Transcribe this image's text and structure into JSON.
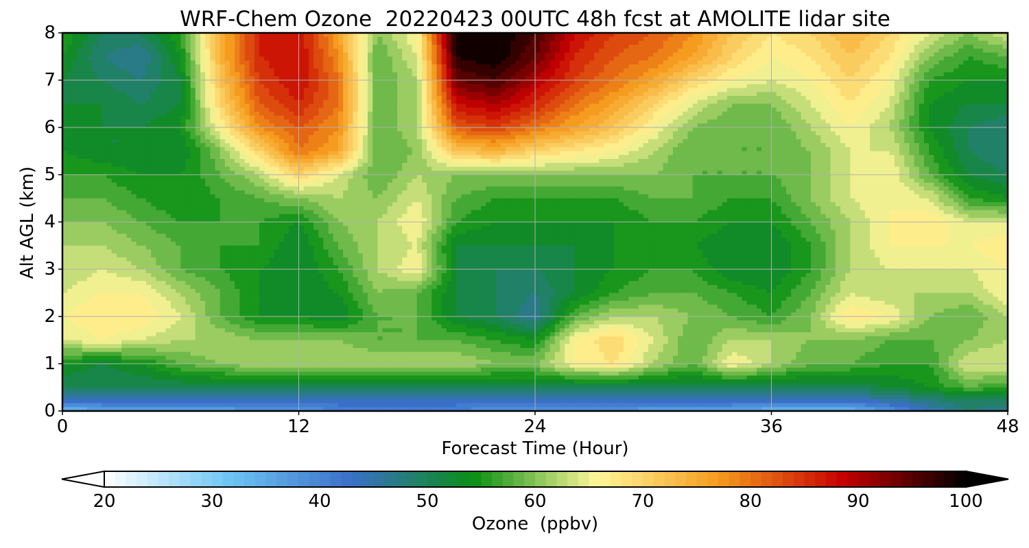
{
  "chart_data": {
    "type": "heatmap",
    "title": "WRF-Chem Ozone  20220423 00UTC 48h fcst at AMOLITE lidar site",
    "xlabel": "Forecast Time (Hour)",
    "ylabel": "Alt AGL (km)",
    "xlim": [
      0,
      48
    ],
    "ylim": [
      0,
      8
    ],
    "x_ticks": [
      "0",
      "12",
      "24",
      "36",
      "48"
    ],
    "y_ticks": [
      "0",
      "1",
      "2",
      "3",
      "4",
      "5",
      "6",
      "7",
      "8"
    ],
    "grid": true,
    "x": [
      0,
      2,
      4,
      6,
      8,
      10,
      12,
      14,
      16,
      18,
      20,
      22,
      24,
      26,
      28,
      30,
      32,
      34,
      36,
      38,
      40,
      42,
      44,
      46,
      48
    ],
    "y": [
      0,
      0.25,
      0.5,
      1,
      1.5,
      2,
      2.5,
      3,
      3.5,
      4,
      4.5,
      5,
      5.5,
      6,
      6.5,
      7,
      7.5,
      8
    ],
    "z": [
      [
        32,
        36,
        36,
        36,
        36,
        38,
        38,
        40,
        40,
        40,
        40,
        38,
        38,
        38,
        38,
        36,
        36,
        36,
        34,
        34,
        34,
        38,
        44,
        48,
        46
      ],
      [
        44,
        44,
        44,
        44,
        44,
        44,
        44,
        44,
        44,
        44,
        44,
        44,
        44,
        44,
        44,
        44,
        44,
        44,
        44,
        44,
        44,
        46,
        48,
        50,
        50
      ],
      [
        50,
        50,
        50,
        50,
        50,
        50,
        50,
        50,
        50,
        50,
        50,
        50,
        50,
        50,
        50,
        50,
        50,
        50,
        50,
        50,
        50,
        52,
        54,
        58,
        56
      ],
      [
        54,
        52,
        54,
        58,
        60,
        62,
        62,
        62,
        62,
        62,
        62,
        60,
        60,
        66,
        68,
        62,
        58,
        66,
        62,
        58,
        58,
        56,
        56,
        64,
        64
      ],
      [
        64,
        66,
        64,
        62,
        62,
        60,
        60,
        60,
        58,
        58,
        58,
        56,
        54,
        66,
        70,
        64,
        58,
        62,
        62,
        60,
        60,
        58,
        58,
        60,
        62
      ],
      [
        66,
        68,
        68,
        64,
        58,
        54,
        54,
        52,
        58,
        58,
        52,
        50,
        46,
        58,
        62,
        62,
        60,
        58,
        56,
        60,
        68,
        66,
        60,
        58,
        62
      ],
      [
        64,
        66,
        66,
        62,
        58,
        54,
        52,
        54,
        60,
        58,
        52,
        50,
        48,
        52,
        56,
        58,
        58,
        56,
        54,
        58,
        64,
        62,
        62,
        62,
        66
      ],
      [
        62,
        64,
        62,
        58,
        56,
        54,
        52,
        56,
        62,
        66,
        52,
        50,
        50,
        52,
        54,
        56,
        56,
        52,
        52,
        56,
        62,
        64,
        64,
        64,
        66
      ],
      [
        62,
        62,
        60,
        58,
        56,
        56,
        52,
        58,
        62,
        64,
        52,
        52,
        52,
        52,
        54,
        56,
        54,
        52,
        52,
        56,
        62,
        66,
        66,
        66,
        68
      ],
      [
        60,
        60,
        58,
        56,
        56,
        56,
        54,
        60,
        62,
        66,
        56,
        54,
        54,
        54,
        54,
        56,
        56,
        54,
        54,
        58,
        62,
        66,
        68,
        64,
        64
      ],
      [
        58,
        58,
        56,
        54,
        56,
        58,
        60,
        62,
        60,
        64,
        58,
        56,
        56,
        56,
        56,
        58,
        58,
        56,
        56,
        60,
        64,
        66,
        64,
        56,
        54
      ],
      [
        56,
        56,
        54,
        54,
        58,
        62,
        70,
        64,
        58,
        62,
        60,
        60,
        60,
        60,
        60,
        60,
        58,
        58,
        58,
        60,
        64,
        66,
        58,
        52,
        50
      ],
      [
        54,
        52,
        52,
        52,
        60,
        70,
        80,
        76,
        58,
        60,
        72,
        74,
        70,
        68,
        66,
        62,
        58,
        58,
        58,
        60,
        64,
        64,
        56,
        50,
        48
      ],
      [
        52,
        52,
        52,
        54,
        66,
        78,
        82,
        78,
        58,
        62,
        82,
        84,
        80,
        76,
        72,
        66,
        60,
        58,
        58,
        62,
        66,
        62,
        54,
        50,
        48
      ],
      [
        52,
        52,
        50,
        52,
        70,
        82,
        86,
        80,
        58,
        62,
        88,
        90,
        86,
        80,
        76,
        70,
        64,
        60,
        60,
        64,
        68,
        64,
        54,
        52,
        52
      ],
      [
        52,
        50,
        48,
        52,
        72,
        84,
        88,
        80,
        58,
        62,
        94,
        96,
        90,
        84,
        80,
        76,
        70,
        66,
        64,
        66,
        70,
        66,
        56,
        54,
        54
      ],
      [
        54,
        48,
        46,
        54,
        74,
        86,
        88,
        78,
        58,
        64,
        98,
        100,
        94,
        86,
        82,
        80,
        76,
        70,
        66,
        68,
        72,
        68,
        60,
        56,
        58
      ],
      [
        56,
        50,
        50,
        56,
        74,
        86,
        88,
        76,
        60,
        66,
        100,
        100,
        96,
        88,
        84,
        82,
        78,
        72,
        68,
        70,
        74,
        70,
        64,
        60,
        64
      ]
    ],
    "colorbar": {
      "label": "Ozone  (ppbv)",
      "min": 20,
      "max": 100,
      "ticks": [
        "20",
        "30",
        "40",
        "50",
        "60",
        "70",
        "80",
        "90",
        "100"
      ],
      "extend": "both",
      "colors": [
        "#ffffff",
        "#6ec6f4",
        "#3b6fc9",
        "#0a8f14",
        "#fff799",
        "#f59a1c",
        "#c60000",
        "#000000"
      ]
    }
  }
}
